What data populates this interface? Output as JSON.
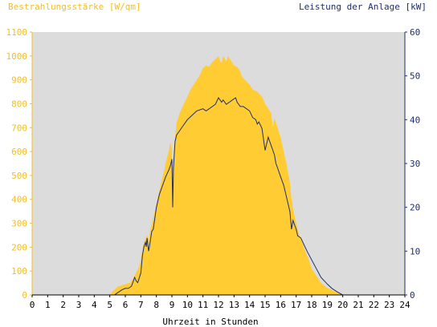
{
  "chart_data": {
    "type": "area",
    "ylabel_left": "Bestrahlungsstärke [W/qm]",
    "ylabel_right": "Leistung der Anlage [kW]",
    "xlabel": "Uhrzeit in Stunden",
    "xlim": [
      0,
      24
    ],
    "ylim_left": [
      0,
      1100
    ],
    "ylim_right": [
      0,
      60
    ],
    "x_ticks": [
      "0",
      "1",
      "2",
      "3",
      "4",
      "5",
      "6",
      "7",
      "8",
      "9",
      "10",
      "11",
      "12",
      "13",
      "14",
      "15",
      "16",
      "17",
      "18",
      "19",
      "20",
      "21",
      "22",
      "23",
      "24"
    ],
    "y_left_ticks": [
      "0",
      "100",
      "200",
      "300",
      "400",
      "500",
      "600",
      "700",
      "800",
      "900",
      "1000",
      "1100"
    ],
    "y_right_ticks": [
      "0",
      "10",
      "20",
      "30",
      "40",
      "50",
      "60"
    ],
    "grid": false,
    "colors": {
      "plot_background": "#dcdcdc",
      "irradiance_fill": "#ffcc33",
      "power_line": "#1f2f6e",
      "left_axis_text": "#f4bf22",
      "right_axis_text": "#1f2f6e"
    },
    "series": [
      {
        "axis": "left",
        "style": "area",
        "x": [
          0,
          5.0,
          5.2,
          5.5,
          6.0,
          6.3,
          6.6,
          6.9,
          7.0,
          7.2,
          7.4,
          7.5,
          7.6,
          7.8,
          8.0,
          8.2,
          8.5,
          8.7,
          8.8,
          8.9,
          9.0,
          9.05,
          9.1,
          9.2,
          9.3,
          9.5,
          9.7,
          10.0,
          10.2,
          10.5,
          10.8,
          11.0,
          11.2,
          11.4,
          11.6,
          11.8,
          12.0,
          12.1,
          12.2,
          12.3,
          12.4,
          12.5,
          12.6,
          12.8,
          13.0,
          13.2,
          13.4,
          13.5,
          13.7,
          14.0,
          14.2,
          14.5,
          14.8,
          15.0,
          15.2,
          15.4,
          15.5,
          15.6,
          15.8,
          16.0,
          16.2,
          16.4,
          16.6,
          16.7,
          16.8,
          17.0,
          17.2,
          17.4,
          17.6,
          17.8,
          18.0,
          18.3,
          18.6,
          19.0,
          19.3,
          19.6,
          19.9,
          20.1,
          24
        ],
        "values": [
          0,
          0,
          15,
          35,
          45,
          50,
          80,
          120,
          150,
          220,
          250,
          230,
          270,
          320,
          380,
          440,
          520,
          580,
          600,
          640,
          610,
          420,
          560,
          660,
          720,
          760,
          790,
          830,
          860,
          890,
          920,
          950,
          960,
          955,
          975,
          985,
          1000,
          980,
          970,
          1000,
          990,
          975,
          1000,
          980,
          960,
          955,
          935,
          915,
          900,
          880,
          860,
          850,
          830,
          800,
          780,
          760,
          700,
          740,
          700,
          660,
          600,
          540,
          470,
          400,
          360,
          300,
          250,
          220,
          180,
          150,
          110,
          80,
          50,
          30,
          20,
          12,
          5,
          0,
          0
        ]
      },
      {
        "axis": "right",
        "style": "line",
        "x": [
          0,
          5.3,
          5.5,
          5.8,
          6.0,
          6.2,
          6.4,
          6.5,
          6.6,
          6.7,
          6.8,
          7.0,
          7.1,
          7.2,
          7.3,
          7.35,
          7.4,
          7.5,
          7.6,
          7.7,
          7.8,
          8.0,
          8.2,
          8.4,
          8.6,
          8.8,
          8.9,
          9.0,
          9.05,
          9.1,
          9.2,
          9.3,
          9.5,
          9.7,
          10.0,
          10.3,
          10.6,
          11.0,
          11.2,
          11.4,
          11.6,
          11.8,
          12.0,
          12.1,
          12.2,
          12.3,
          12.5,
          12.7,
          12.9,
          13.1,
          13.2,
          13.4,
          13.6,
          13.8,
          14.0,
          14.2,
          14.4,
          14.5,
          14.6,
          14.8,
          15.0,
          15.2,
          15.4,
          15.6,
          15.7,
          15.8,
          16.0,
          16.2,
          16.4,
          16.6,
          16.7,
          16.8,
          16.9,
          17.0,
          17.1,
          17.3,
          17.5,
          17.7,
          18.0,
          18.3,
          18.6,
          19.0,
          19.3,
          19.6,
          19.8,
          20.0,
          24
        ],
        "values": [
          0,
          0,
          0.5,
          1.2,
          1.5,
          1.5,
          2.0,
          3.0,
          4.0,
          3.2,
          2.8,
          5.0,
          9.0,
          11.0,
          12.0,
          11.0,
          13.0,
          10.0,
          12.0,
          14.5,
          15.0,
          20.0,
          23.0,
          25.0,
          27.0,
          28.5,
          29.5,
          31.0,
          20.0,
          29.0,
          35.0,
          36.5,
          37.5,
          38.5,
          40.0,
          41.0,
          42.0,
          42.5,
          42.0,
          42.5,
          43.0,
          43.5,
          45.0,
          44.5,
          44.0,
          44.5,
          43.5,
          44.0,
          44.5,
          45.0,
          44.0,
          43.0,
          43.0,
          42.5,
          42.0,
          40.5,
          40.0,
          39.0,
          39.5,
          38.0,
          33.0,
          36.0,
          34.0,
          32.0,
          30.0,
          29.0,
          27.0,
          25.0,
          22.0,
          19.0,
          15.0,
          17.0,
          16.0,
          15.0,
          13.5,
          13.0,
          11.5,
          10.0,
          8.0,
          6.0,
          4.0,
          2.5,
          1.5,
          0.8,
          0.4,
          0,
          0
        ]
      }
    ]
  }
}
